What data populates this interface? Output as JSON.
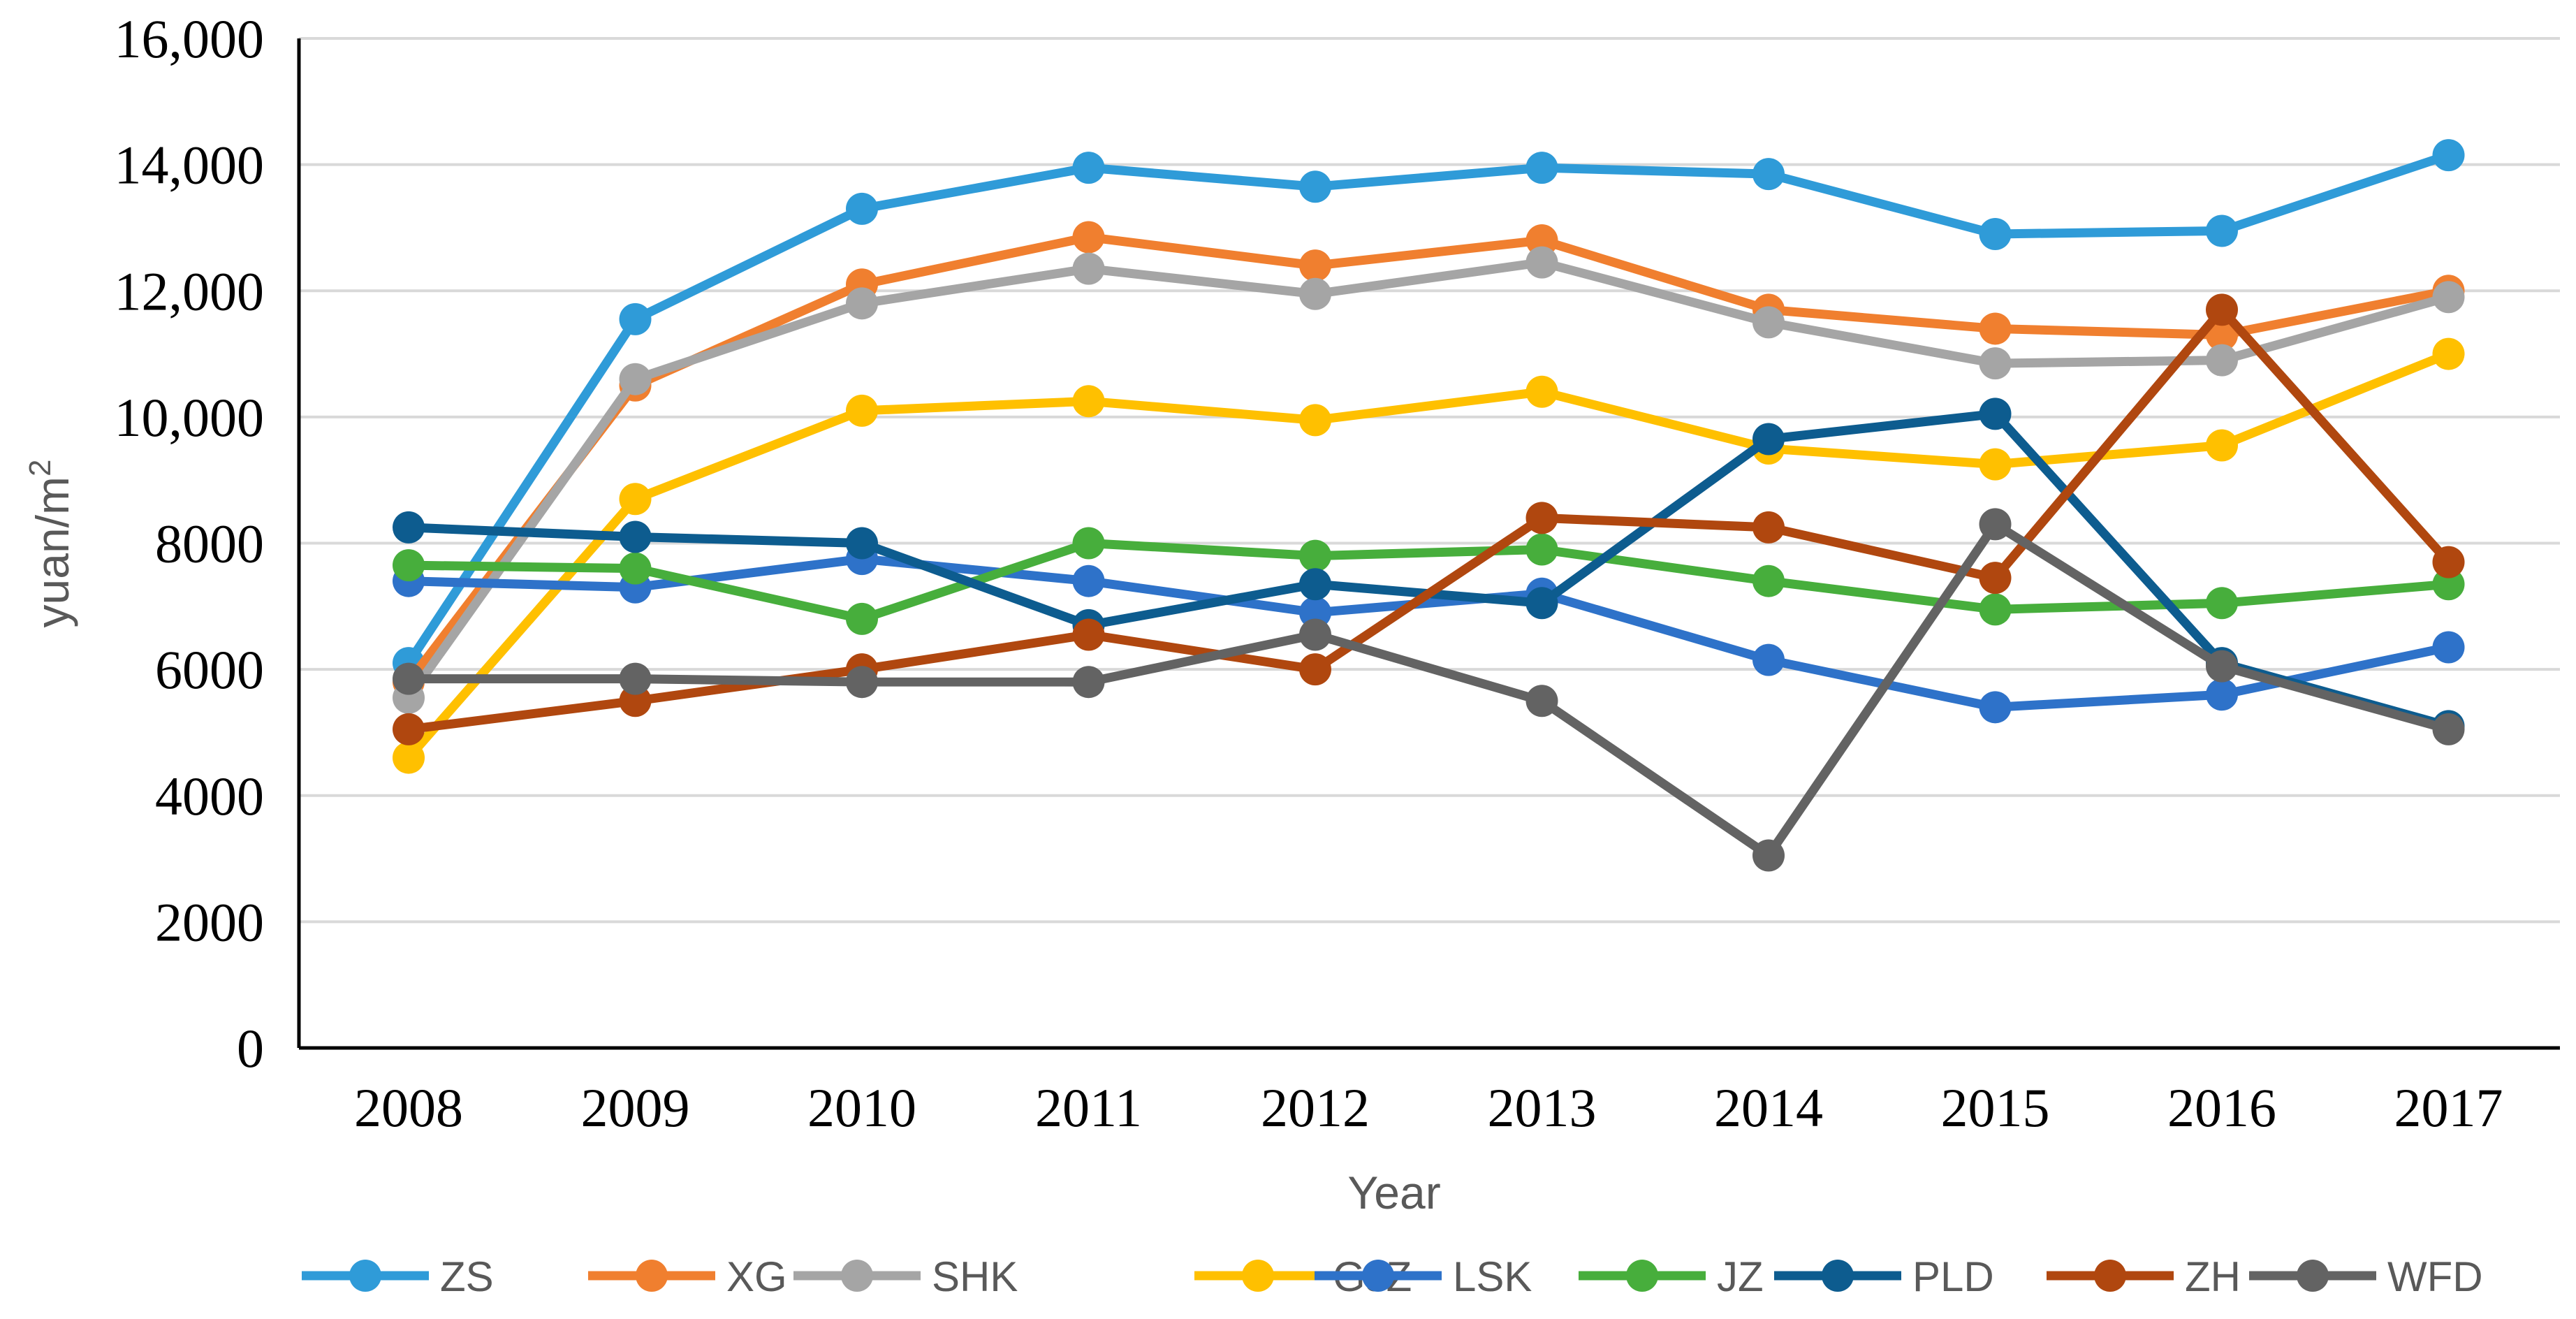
{
  "chart_data": {
    "type": "line",
    "title": "",
    "xlabel": "Year",
    "ylabel": "yuan/m",
    "ylabel_superscript": "2",
    "ylim": [
      0,
      16000
    ],
    "yticks": [
      {
        "value": 0,
        "label": "0"
      },
      {
        "value": 2000,
        "label": "2000"
      },
      {
        "value": 4000,
        "label": "4000"
      },
      {
        "value": 6000,
        "label": "6000"
      },
      {
        "value": 8000,
        "label": "8000"
      },
      {
        "value": 10000,
        "label": "10,000"
      },
      {
        "value": 12000,
        "label": "12,000"
      },
      {
        "value": 14000,
        "label": "14,000"
      },
      {
        "value": 16000,
        "label": "16,000"
      }
    ],
    "grid": true,
    "legend_position": "bottom",
    "categories": [
      "2008",
      "2009",
      "2010",
      "2011",
      "2012",
      "2013",
      "2014",
      "2015",
      "2016",
      "2017"
    ],
    "series": [
      {
        "name": "ZS",
        "color": "#2F9BD8",
        "values": [
          6100,
          11550,
          13300,
          13950,
          13650,
          13950,
          13850,
          12900,
          12950,
          14150
        ]
      },
      {
        "name": "XG",
        "color": "#F07F2F",
        "values": [
          5800,
          10500,
          12100,
          12850,
          12400,
          12800,
          11700,
          11400,
          11300,
          12000
        ]
      },
      {
        "name": "SHK",
        "color": "#A5A5A5",
        "values": [
          5550,
          10600,
          11800,
          12350,
          11950,
          12450,
          11500,
          10850,
          10900,
          11900
        ]
      },
      {
        "name": "GJZ",
        "color": "#FFC000",
        "values": [
          4600,
          8700,
          10100,
          10250,
          9950,
          10400,
          9500,
          9250,
          9550,
          11000
        ]
      },
      {
        "name": "LSK",
        "color": "#2E72C9",
        "values": [
          7400,
          7300,
          7750,
          7400,
          6900,
          7200,
          6150,
          5400,
          5600,
          6350
        ]
      },
      {
        "name": "JZ",
        "color": "#47AE3C",
        "values": [
          7650,
          7600,
          6800,
          8000,
          7800,
          7900,
          7400,
          6950,
          7050,
          7350
        ]
      },
      {
        "name": "PLD",
        "color": "#0D5C8F",
        "values": [
          8250,
          8100,
          8000,
          6700,
          7350,
          7050,
          9650,
          10050,
          6100,
          5100
        ]
      },
      {
        "name": "ZH",
        "color": "#B0470F",
        "values": [
          5050,
          5500,
          6000,
          6550,
          6000,
          8400,
          8250,
          7450,
          11700,
          7700
        ]
      },
      {
        "name": "WFD",
        "color": "#636363",
        "values": [
          5850,
          5850,
          5800,
          5800,
          6550,
          5500,
          3050,
          8300,
          6050,
          5050
        ]
      }
    ]
  }
}
